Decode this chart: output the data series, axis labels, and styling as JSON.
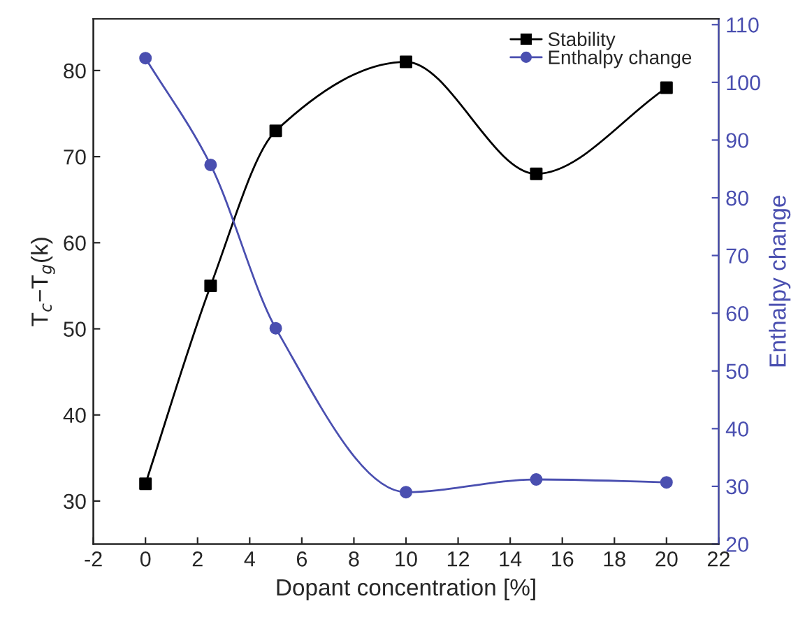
{
  "chart_data": {
    "type": "line",
    "xlabel": "Dopant concentration [%]",
    "ylabel": "T$_{c}$−T$_{g}$(k)",
    "y2label": "Enthalpy change",
    "x": [
      0,
      2.5,
      5,
      10,
      15,
      20
    ],
    "series": [
      {
        "name": "Stability",
        "color": "#000000",
        "marker": "square",
        "values": [
          32,
          55,
          73,
          81,
          68,
          78
        ]
      },
      {
        "name": "Enthalpy change",
        "color": "#4a4fb0",
        "marker": "circle",
        "axis": "y2",
        "values": [
          104.2,
          85.7,
          57.4,
          29,
          31.2,
          30.7
        ]
      }
    ],
    "xlim": [
      -2,
      22
    ],
    "xticks": [
      -2,
      0,
      2,
      4,
      6,
      8,
      10,
      12,
      14,
      16,
      18,
      20,
      22
    ],
    "ylim": [
      25,
      86
    ],
    "yticks": [
      30,
      40,
      50,
      60,
      70,
      80
    ],
    "y2lim": [
      20,
      111
    ],
    "y2ticks": [
      20,
      30,
      40,
      50,
      60,
      70,
      80,
      90,
      100,
      110
    ],
    "grid": false,
    "legend": "top right",
    "line_style": "solid"
  }
}
